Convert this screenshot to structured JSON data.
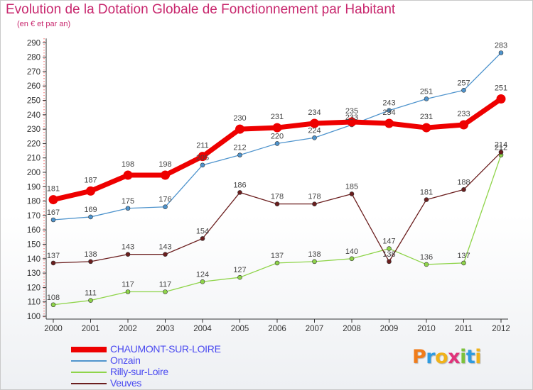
{
  "header": {
    "title": "Evolution de la Dotation Globale de Fonctionnement par Habitant",
    "subtitle": "(en € et par an)"
  },
  "logo": {
    "letters": [
      "P",
      "r",
      "o",
      "x",
      "i",
      "t",
      "i"
    ],
    "colors": [
      "#f07c1a",
      "#2f9be0",
      "#f0b21a",
      "#e0327a",
      "#7cc23c",
      "#2f9be0",
      "#f0b21a"
    ]
  },
  "chart_data": {
    "type": "line",
    "title": "Evolution de la Dotation Globale de Fonctionnement par Habitant",
    "subtitle": "(en € et par an)",
    "xlabel": "",
    "ylabel": "",
    "x": [
      "2000",
      "2001",
      "2002",
      "2003",
      "2004",
      "2005",
      "2006",
      "2007",
      "2008",
      "2009",
      "2010",
      "2011",
      "2012"
    ],
    "ylim": [
      100,
      290
    ],
    "yticks": [
      100,
      110,
      120,
      130,
      140,
      150,
      160,
      170,
      180,
      190,
      200,
      210,
      220,
      230,
      240,
      250,
      260,
      270,
      280,
      290
    ],
    "grid": false,
    "legend_position": "bottom-left",
    "series": [
      {
        "name": "CHAUMONT-SUR-LOIRE",
        "color": "#ee0000",
        "values": [
          181,
          187,
          198,
          198,
          211,
          230,
          231,
          234,
          235,
          234,
          231,
          233,
          251
        ]
      },
      {
        "name": "Onzain",
        "color": "#4f94cd",
        "values": [
          167,
          169,
          175,
          176,
          205,
          212,
          220,
          224,
          233,
          243,
          251,
          257,
          283
        ]
      },
      {
        "name": "Rilly-sur-Loire",
        "color": "#8fd44a",
        "values": [
          108,
          111,
          117,
          117,
          124,
          127,
          137,
          138,
          140,
          147,
          136,
          137,
          212
        ]
      },
      {
        "name": "Veuves",
        "color": "#6b1e1e",
        "values": [
          137,
          138,
          143,
          143,
          154,
          186,
          178,
          178,
          185,
          138,
          181,
          188,
          214
        ]
      }
    ]
  }
}
